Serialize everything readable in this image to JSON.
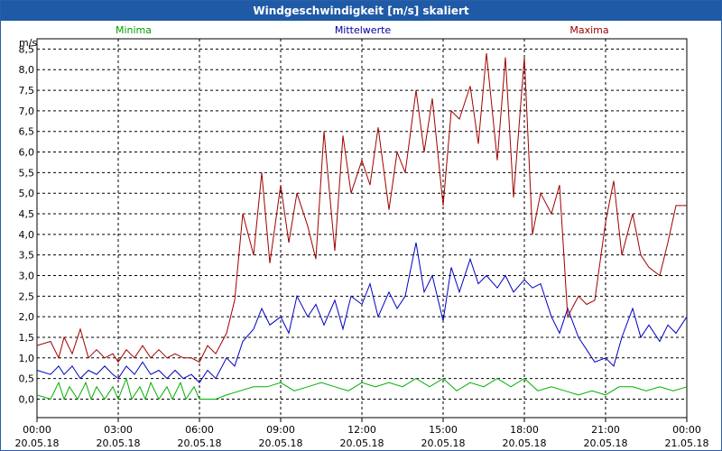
{
  "window": {
    "title": "Windgeschwindigkeit [m/s] skaliert"
  },
  "colors": {
    "minima": "#00b000",
    "mean": "#0000c0",
    "maxima": "#a00000",
    "title_bar": "#1f5aa6"
  },
  "chart_data": {
    "type": "line",
    "title": "Windgeschwindigkeit [m/s] skaliert",
    "ylabel": "m/s",
    "xlabel": "",
    "ylim": [
      -0.45,
      8.75
    ],
    "xlim": [
      0,
      24
    ],
    "y_ticks": [
      0.0,
      0.5,
      1.0,
      1.5,
      2.0,
      2.5,
      3.0,
      3.5,
      4.0,
      4.5,
      5.0,
      5.5,
      6.0,
      6.5,
      7.0,
      7.5,
      8.0,
      8.5
    ],
    "y_tick_labels": [
      "0,0",
      "0,5",
      "1,0",
      "1,5",
      "2,0",
      "2,5",
      "3,0",
      "3,5",
      "4,0",
      "4,5",
      "5,0",
      "5,5",
      "6,0",
      "6,5",
      "7,0",
      "7,5",
      "8,0",
      "8,5"
    ],
    "x_ticks": [
      0,
      3,
      6,
      9,
      12,
      15,
      18,
      21,
      24
    ],
    "x_tick_labels": [
      [
        "00:00",
        "20.05.18"
      ],
      [
        "03:00",
        "20.05.18"
      ],
      [
        "06:00",
        "20.05.18"
      ],
      [
        "09:00",
        "20.05.18"
      ],
      [
        "12:00",
        "20.05.18"
      ],
      [
        "15:00",
        "20.05.18"
      ],
      [
        "18:00",
        "20.05.18"
      ],
      [
        "21:00",
        "20.05.18"
      ],
      [
        "00:00",
        "21.05.18"
      ]
    ],
    "grid": true,
    "legend": [
      "Minima",
      "Mittelwerte",
      "Maxima"
    ],
    "legend_position": "top",
    "series": [
      {
        "name": "Minima",
        "x": [
          0,
          0.5,
          0.8,
          1.0,
          1.2,
          1.5,
          1.8,
          2.0,
          2.2,
          2.5,
          2.8,
          3.0,
          3.3,
          3.5,
          3.8,
          4.0,
          4.2,
          4.5,
          4.8,
          5.0,
          5.3,
          5.5,
          5.8,
          6.0,
          6.3,
          6.6,
          7.0,
          7.5,
          8.0,
          8.5,
          9.0,
          9.5,
          10.0,
          10.5,
          11.0,
          11.5,
          12.0,
          12.5,
          13.0,
          13.5,
          14.0,
          14.5,
          15.0,
          15.5,
          16.0,
          16.5,
          17.0,
          17.5,
          18.0,
          18.5,
          19.0,
          19.5,
          20.0,
          20.5,
          21.0,
          21.5,
          22.0,
          22.5,
          23.0,
          23.5,
          24.0
        ],
        "values": [
          0.1,
          0.0,
          0.4,
          0.0,
          0.3,
          0.0,
          0.4,
          0.0,
          0.3,
          0.0,
          0.3,
          0.0,
          0.5,
          0.0,
          0.3,
          0.0,
          0.4,
          0.0,
          0.3,
          0.0,
          0.4,
          0.0,
          0.3,
          0.0,
          0.0,
          0.0,
          0.1,
          0.2,
          0.3,
          0.3,
          0.4,
          0.2,
          0.3,
          0.4,
          0.3,
          0.2,
          0.4,
          0.3,
          0.4,
          0.3,
          0.5,
          0.3,
          0.5,
          0.2,
          0.4,
          0.3,
          0.5,
          0.3,
          0.5,
          0.2,
          0.3,
          0.2,
          0.1,
          0.2,
          0.1,
          0.3,
          0.3,
          0.2,
          0.3,
          0.2,
          0.3
        ]
      },
      {
        "name": "Mittelwerte",
        "x": [
          0,
          0.5,
          0.8,
          1.0,
          1.3,
          1.6,
          1.9,
          2.2,
          2.5,
          2.8,
          3.0,
          3.3,
          3.6,
          3.9,
          4.2,
          4.5,
          4.8,
          5.1,
          5.4,
          5.7,
          6.0,
          6.3,
          6.6,
          7.0,
          7.3,
          7.6,
          8.0,
          8.3,
          8.6,
          9.0,
          9.3,
          9.6,
          10.0,
          10.3,
          10.6,
          11.0,
          11.3,
          11.6,
          12.0,
          12.3,
          12.6,
          13.0,
          13.3,
          13.6,
          14.0,
          14.3,
          14.6,
          15.0,
          15.3,
          15.6,
          16.0,
          16.3,
          16.6,
          17.0,
          17.3,
          17.6,
          18.0,
          18.3,
          18.6,
          19.0,
          19.3,
          19.6,
          20.0,
          20.3,
          20.6,
          21.0,
          21.3,
          21.6,
          22.0,
          22.3,
          22.6,
          23.0,
          23.3,
          23.6,
          24.0
        ],
        "values": [
          0.7,
          0.6,
          0.8,
          0.6,
          0.8,
          0.5,
          0.7,
          0.6,
          0.8,
          0.6,
          0.5,
          0.8,
          0.6,
          0.9,
          0.6,
          0.7,
          0.5,
          0.7,
          0.5,
          0.6,
          0.4,
          0.7,
          0.5,
          1.0,
          0.8,
          1.4,
          1.7,
          2.2,
          1.8,
          2.0,
          1.6,
          2.5,
          2.0,
          2.3,
          1.8,
          2.4,
          1.7,
          2.5,
          2.3,
          2.8,
          2.0,
          2.6,
          2.2,
          2.5,
          3.8,
          2.6,
          3.0,
          1.9,
          3.2,
          2.6,
          3.4,
          2.8,
          3.0,
          2.7,
          3.0,
          2.6,
          2.9,
          2.7,
          2.8,
          2.0,
          1.6,
          2.2,
          1.5,
          1.2,
          0.9,
          1.0,
          0.8,
          1.5,
          2.2,
          1.5,
          1.8,
          1.4,
          1.8,
          1.6,
          2.0
        ]
      },
      {
        "name": "Maxima",
        "x": [
          0,
          0.5,
          0.8,
          1.0,
          1.3,
          1.6,
          1.9,
          2.2,
          2.5,
          2.8,
          3.0,
          3.3,
          3.6,
          3.9,
          4.2,
          4.5,
          4.8,
          5.1,
          5.4,
          5.7,
          6.0,
          6.3,
          6.6,
          7.0,
          7.3,
          7.6,
          8.0,
          8.3,
          8.6,
          9.0,
          9.3,
          9.6,
          10.0,
          10.3,
          10.6,
          11.0,
          11.3,
          11.6,
          12.0,
          12.3,
          12.6,
          13.0,
          13.3,
          13.6,
          14.0,
          14.3,
          14.6,
          15.0,
          15.3,
          15.6,
          16.0,
          16.3,
          16.6,
          17.0,
          17.3,
          17.6,
          18.0,
          18.3,
          18.6,
          19.0,
          19.3,
          19.6,
          20.0,
          20.3,
          20.6,
          21.0,
          21.3,
          21.6,
          22.0,
          22.3,
          22.6,
          23.0,
          23.3,
          23.6,
          24.0
        ],
        "values": [
          1.3,
          1.4,
          1.0,
          1.5,
          1.1,
          1.7,
          1.0,
          1.2,
          1.0,
          1.1,
          0.9,
          1.2,
          1.0,
          1.3,
          1.0,
          1.2,
          1.0,
          1.1,
          1.0,
          1.0,
          0.9,
          1.3,
          1.1,
          1.6,
          2.4,
          4.5,
          3.5,
          5.5,
          3.3,
          5.2,
          3.8,
          5.0,
          4.2,
          3.4,
          6.5,
          3.6,
          6.4,
          5.0,
          5.8,
          5.2,
          6.6,
          4.6,
          6.0,
          5.5,
          7.5,
          6.0,
          7.3,
          4.7,
          7.0,
          6.8,
          7.6,
          6.2,
          8.4,
          5.8,
          8.3,
          4.9,
          8.3,
          4.0,
          5.0,
          4.5,
          5.2,
          2.0,
          2.5,
          2.3,
          2.4,
          4.3,
          5.3,
          3.5,
          4.5,
          3.5,
          3.2,
          3.0,
          3.8,
          4.7,
          4.7
        ]
      }
    ]
  }
}
